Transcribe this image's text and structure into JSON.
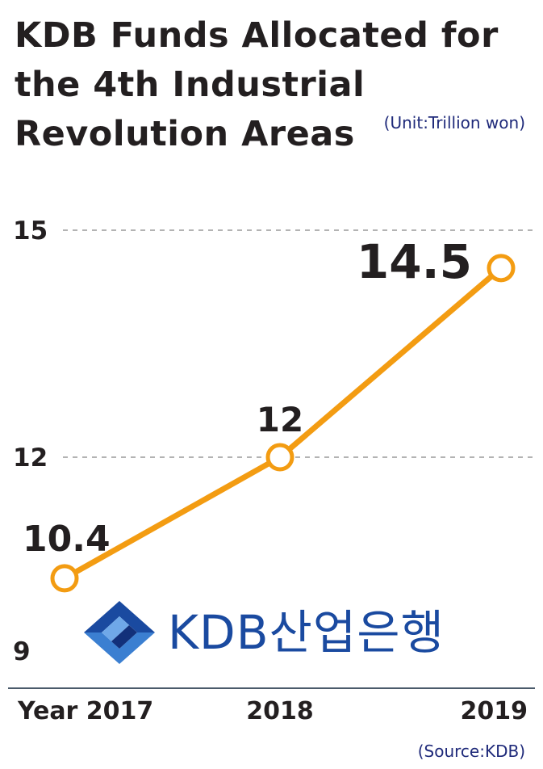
{
  "title": "KDB Funds Allocated for the 4th Industrial Revolution Areas",
  "unit_note": "(Unit:Trillion won)",
  "source_note": "(Source:KDB)",
  "logo": {
    "text": "KDB산업은행",
    "icon": "kdb-ribbon-logo-icon"
  },
  "colors": {
    "line": "#f39c12",
    "text": "#231f20",
    "note": "#1f2a7a",
    "gridline": "#9a9a9a",
    "axis": "#4a5a6a"
  },
  "chart_data": {
    "type": "line",
    "title": "KDB Funds Allocated for the 4th Industrial Revolution Areas",
    "x": [
      "2017",
      "2018",
      "2019"
    ],
    "x_tick_labels": [
      "Year 2017",
      "2018",
      "2019"
    ],
    "values": [
      10.4,
      12,
      14.5
    ],
    "data_labels": [
      "10.4",
      "12",
      "14.5"
    ],
    "y_ticks": [
      9,
      12,
      15
    ],
    "y_tick_labels": [
      "9",
      "12",
      "15"
    ],
    "ylim": [
      9,
      15
    ],
    "gridlines": [
      12,
      15
    ],
    "ylabel": "",
    "xlabel": "",
    "legend": "none"
  }
}
